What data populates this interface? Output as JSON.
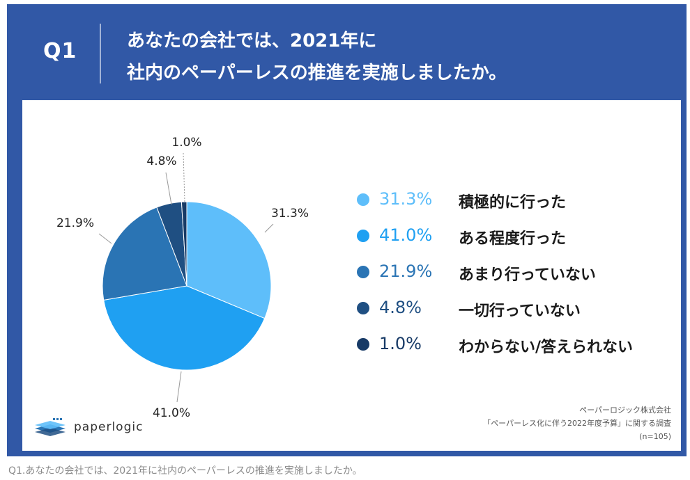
{
  "header": {
    "q_label": "Q1",
    "question_line1": "あなたの会社では、2021年に",
    "question_line2": "社内のペーパーレスの推進を実施しましたか。"
  },
  "chart_data": {
    "type": "pie",
    "categories": [
      "積極的に行った",
      "ある程度行った",
      "あまり行っていない",
      "一切行っていない",
      "わからない/答えられない"
    ],
    "values": [
      31.3,
      41.0,
      21.9,
      4.8,
      1.0
    ],
    "labels": [
      "31.3%",
      "41.0%",
      "21.9%",
      "4.8%",
      "1.0%"
    ],
    "colors": [
      "#5ebefa",
      "#1fa0f2",
      "#2a74b4",
      "#1f4f82",
      "#173a66"
    ],
    "legend_text_colors": [
      "#5ebefa",
      "#1fa0f2",
      "#2a74b4",
      "#1f4f82",
      "#173a66"
    ],
    "start_angle_deg": 0,
    "direction": "clockwise",
    "legend_position": "right"
  },
  "legend": [
    {
      "pct": "31.3%",
      "label": "積極的に行った"
    },
    {
      "pct": "41.0%",
      "label": "ある程度行った"
    },
    {
      "pct": "21.9%",
      "label": "あまり行っていない"
    },
    {
      "pct": "4.8%",
      "label": "一切行っていない"
    },
    {
      "pct": "1.0%",
      "label": "わからない/答えられない"
    }
  ],
  "logo": {
    "text": "paperlogic"
  },
  "source": {
    "line1": "ペーパーロジック株式会社",
    "line2": "「ペーパーレス化に伴う2022年度予算」に関する調査",
    "line3": "(n=105)"
  },
  "caption": "Q1.あなたの会社では、2021年に社内のペーパーレスの推進を実施しましたか。"
}
